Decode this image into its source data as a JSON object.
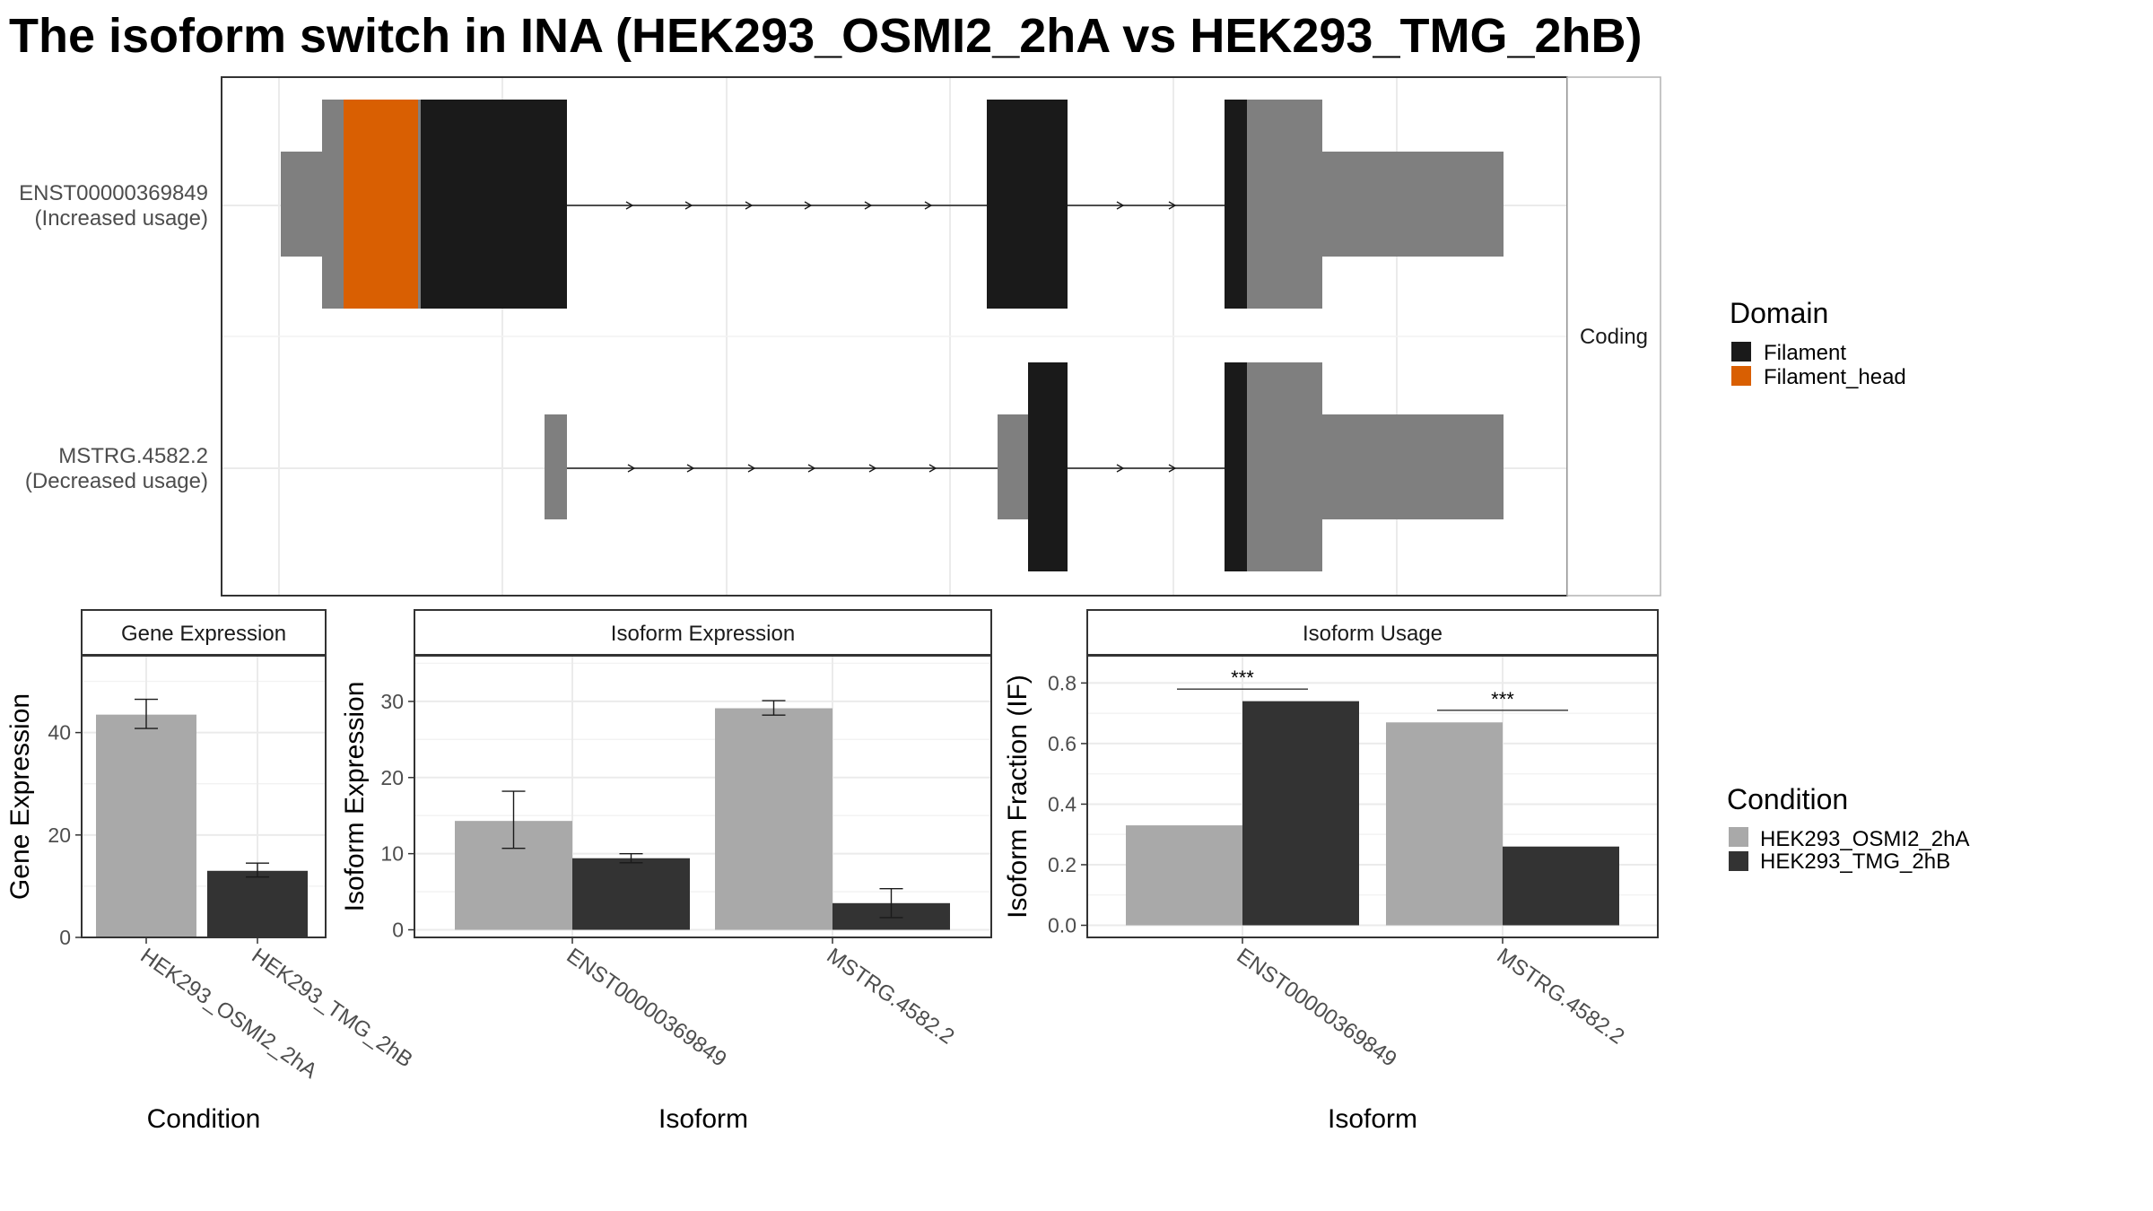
{
  "title": "The isoform switch in INA (HEK293_OSMI2_2hA vs HEK293_TMG_2hB)",
  "colors": {
    "utr": "#7f7f7f",
    "filament": "#1a1a1a",
    "filament_head": "#d95f02",
    "cond_a": "#a9a9a9",
    "cond_b": "#333333"
  },
  "transcript_panel": {
    "strip_label": "Coding",
    "isoforms": [
      {
        "id": "ENST00000369849",
        "usage": "(Increased usage)"
      },
      {
        "id": "MSTRG.4582.2",
        "usage": "(Decreased usage)"
      }
    ],
    "domain_legend": {
      "title": "Domain",
      "items": [
        {
          "label": "Filament",
          "color": "#1a1a1a"
        },
        {
          "label": "Filament_head",
          "color": "#d95f02"
        }
      ]
    }
  },
  "condition_legend": {
    "title": "Condition",
    "items": [
      {
        "label": "HEK293_OSMI2_2hA",
        "color": "#a9a9a9"
      },
      {
        "label": "HEK293_TMG_2hB",
        "color": "#333333"
      }
    ]
  },
  "chart_data": [
    {
      "type": "bar",
      "title": "Gene Expression",
      "xlabel": "Condition",
      "ylabel": "Gene Expression",
      "ylim": [
        0,
        55
      ],
      "yticks": [
        0,
        20,
        40
      ],
      "categories": [
        "HEK293_OSMI2_2hA",
        "HEK293_TMG_2hB"
      ],
      "values": [
        43.5,
        13
      ],
      "errors": [
        [
          40.8,
          46.5
        ],
        [
          11.8,
          14.5
        ]
      ]
    },
    {
      "type": "bar",
      "title": "Isoform Expression",
      "xlabel": "Isoform",
      "ylabel": "Isoform Expression",
      "ylim": [
        -1,
        36
      ],
      "yticks": [
        0,
        10,
        20,
        30
      ],
      "categories": [
        "ENST00000369849",
        "MSTRG.4582.2"
      ],
      "series": [
        {
          "name": "HEK293_OSMI2_2hA",
          "values": [
            14.3,
            29.1
          ],
          "errors": [
            [
              10.7,
              18.2
            ],
            [
              28.2,
              30.1
            ]
          ]
        },
        {
          "name": "HEK293_TMG_2hB",
          "values": [
            9.4,
            3.5
          ],
          "errors": [
            [
              8.8,
              10.0
            ],
            [
              1.6,
              5.4
            ]
          ]
        }
      ]
    },
    {
      "type": "bar",
      "title": "Isoform Usage",
      "xlabel": "Isoform",
      "ylabel": "Isoform Fraction (IF)",
      "ylim": [
        -0.04,
        0.89
      ],
      "yticks": [
        0.0,
        0.2,
        0.4,
        0.6,
        0.8
      ],
      "categories": [
        "ENST00000369849",
        "MSTRG.4582.2"
      ],
      "series": [
        {
          "name": "HEK293_OSMI2_2hA",
          "values": [
            0.33,
            0.67
          ]
        },
        {
          "name": "HEK293_TMG_2hB",
          "values": [
            0.74,
            0.26
          ]
        }
      ],
      "significance": [
        {
          "category": "ENST00000369849",
          "label": "***",
          "y": 0.78
        },
        {
          "category": "MSTRG.4582.2",
          "label": "***",
          "y": 0.71
        }
      ]
    }
  ]
}
